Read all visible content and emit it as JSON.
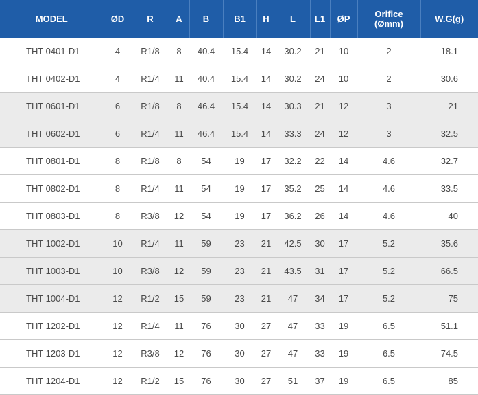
{
  "headers": [
    "MODEL",
    "ØD",
    "R",
    "A",
    "B",
    "B1",
    "H",
    "L",
    "L1",
    "ØP",
    "Orifice",
    "(Ømm)",
    "W.G(g)"
  ],
  "rows": [
    [
      "THT 0401-D1",
      "4",
      "R1/8",
      "8",
      "40.4",
      "15.4",
      "14",
      "30.2",
      "21",
      "10",
      "2",
      "18.1"
    ],
    [
      "THT 0402-D1",
      "4",
      "R1/4",
      "11",
      "40.4",
      "15.4",
      "14",
      "30.2",
      "24",
      "10",
      "2",
      "30.6"
    ],
    [
      "THT 0601-D1",
      "6",
      "R1/8",
      "8",
      "46.4",
      "15.4",
      "14",
      "30.3",
      "21",
      "12",
      "3",
      "21"
    ],
    [
      "THT 0602-D1",
      "6",
      "R1/4",
      "11",
      "46.4",
      "15.4",
      "14",
      "33.3",
      "24",
      "12",
      "3",
      "32.5"
    ],
    [
      "THT 0801-D1",
      "8",
      "R1/8",
      "8",
      "54",
      "19",
      "17",
      "32.2",
      "22",
      "14",
      "4.6",
      "32.7"
    ],
    [
      "THT 0802-D1",
      "8",
      "R1/4",
      "11",
      "54",
      "19",
      "17",
      "35.2",
      "25",
      "14",
      "4.6",
      "33.5"
    ],
    [
      "THT 0803-D1",
      "8",
      "R3/8",
      "12",
      "54",
      "19",
      "17",
      "36.2",
      "26",
      "14",
      "4.6",
      "40"
    ],
    [
      "THT 1002-D1",
      "10",
      "R1/4",
      "11",
      "59",
      "23",
      "21",
      "42.5",
      "30",
      "17",
      "5.2",
      "35.6"
    ],
    [
      "THT 1003-D1",
      "10",
      "R3/8",
      "12",
      "59",
      "23",
      "21",
      "43.5",
      "31",
      "17",
      "5.2",
      "66.5"
    ],
    [
      "THT 1004-D1",
      "12",
      "R1/2",
      "15",
      "59",
      "23",
      "21",
      "47",
      "34",
      "17",
      "5.2",
      "75"
    ],
    [
      "THT 1202-D1",
      "12",
      "R1/4",
      "11",
      "76",
      "30",
      "27",
      "47",
      "33",
      "19",
      "6.5",
      "51.1"
    ],
    [
      "THT 1203-D1",
      "12",
      "R3/8",
      "12",
      "76",
      "30",
      "27",
      "47",
      "33",
      "19",
      "6.5",
      "74.5"
    ],
    [
      "THT 1204-D1",
      "12",
      "R1/2",
      "15",
      "76",
      "30",
      "27",
      "51",
      "37",
      "19",
      "6.5",
      "85"
    ]
  ],
  "shaded_rows": [
    2,
    3,
    7,
    8,
    9
  ],
  "colors": {
    "header_bg": "#1f5da8",
    "header_text": "#ffffff",
    "shade": "#ebebeb",
    "text": "#4a4a4a"
  }
}
